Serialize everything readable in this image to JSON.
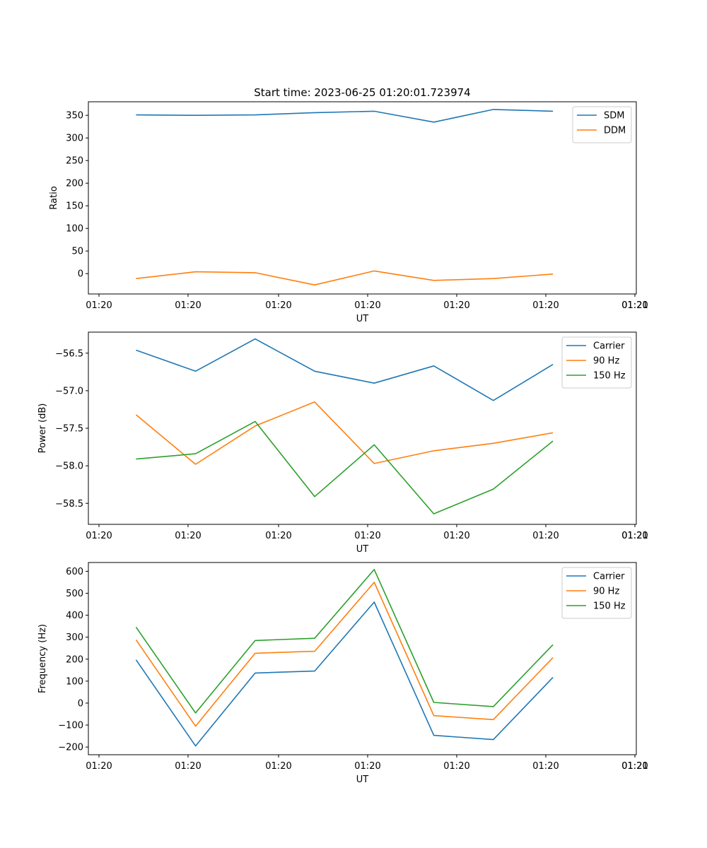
{
  "chart_data": [
    {
      "type": "line",
      "title": "Start time: 2023-06-25 01:20:01.723974",
      "xlabel": "UT",
      "ylabel": "Ratio",
      "x_tick_labels": [
        "01:20",
        "01:20",
        "01:20",
        "01:20",
        "01:20",
        "01:20",
        "01:20",
        "01:21"
      ],
      "x": [
        1,
        2,
        3,
        4,
        5,
        6,
        7,
        8
      ],
      "xlim": [
        0.2,
        9.4
      ],
      "ylim": [
        -45,
        380
      ],
      "y_ticks": [
        0,
        50,
        100,
        150,
        200,
        250,
        300,
        350
      ],
      "legend_position": "upper right",
      "grid": false,
      "series": [
        {
          "name": "SDM",
          "color": "#1f77b4",
          "values": [
            351,
            350,
            351,
            356,
            359,
            335,
            363,
            359
          ]
        },
        {
          "name": "DDM",
          "color": "#ff7f0e",
          "values": [
            -11,
            4,
            2,
            -25,
            6,
            -15,
            -11,
            -1
          ]
        }
      ]
    },
    {
      "type": "line",
      "title": "",
      "xlabel": "UT",
      "ylabel": "Power (dB)",
      "x_tick_labels": [
        "01:20",
        "01:20",
        "01:20",
        "01:20",
        "01:20",
        "01:20",
        "01:20",
        "01:21"
      ],
      "x": [
        1,
        2,
        3,
        4,
        5,
        6,
        7,
        8
      ],
      "xlim": [
        0.2,
        9.4
      ],
      "ylim": [
        -58.78,
        -56.22
      ],
      "y_ticks": [
        -58.5,
        -58.0,
        -57.5,
        -57.0,
        -56.5
      ],
      "y_tick_labels": [
        "−58.5",
        "−58.0",
        "−57.5",
        "−57.0",
        "−56.5"
      ],
      "legend_position": "upper right",
      "grid": false,
      "series": [
        {
          "name": "Carrier",
          "color": "#1f77b4",
          "values": [
            -56.46,
            -56.74,
            -56.31,
            -56.74,
            -56.9,
            -56.67,
            -57.13,
            -56.65
          ]
        },
        {
          "name": "90 Hz",
          "color": "#ff7f0e",
          "values": [
            -57.32,
            -57.98,
            -57.47,
            -57.15,
            -57.97,
            -57.8,
            -57.7,
            -57.56
          ]
        },
        {
          "name": "150 Hz",
          "color": "#2ca02c",
          "values": [
            -57.91,
            -57.84,
            -57.41,
            -58.41,
            -57.72,
            -58.64,
            -58.31,
            -57.67
          ]
        }
      ]
    },
    {
      "type": "line",
      "title": "",
      "xlabel": "UT",
      "ylabel": "Frequency (Hz)",
      "x_tick_labels": [
        "01:20",
        "01:20",
        "01:20",
        "01:20",
        "01:20",
        "01:20",
        "01:20",
        "01:21"
      ],
      "x": [
        1,
        2,
        3,
        4,
        5,
        6,
        7,
        8
      ],
      "xlim": [
        0.2,
        9.4
      ],
      "ylim": [
        -235,
        640
      ],
      "y_ticks": [
        -200,
        -100,
        0,
        100,
        200,
        300,
        400,
        500,
        600
      ],
      "y_tick_labels": [
        "−200",
        "−100",
        "0",
        "100",
        "200",
        "300",
        "400",
        "500",
        "600"
      ],
      "legend_position": "upper right",
      "grid": false,
      "series": [
        {
          "name": "Carrier",
          "color": "#1f77b4",
          "values": [
            197,
            -195,
            137,
            146,
            460,
            -147,
            -166,
            117
          ]
        },
        {
          "name": "90 Hz",
          "color": "#ff7f0e",
          "values": [
            288,
            -105,
            227,
            236,
            550,
            -57,
            -75,
            207
          ]
        },
        {
          "name": "150 Hz",
          "color": "#2ca02c",
          "values": [
            346,
            -45,
            285,
            295,
            608,
            3,
            -16,
            266
          ]
        }
      ]
    }
  ]
}
